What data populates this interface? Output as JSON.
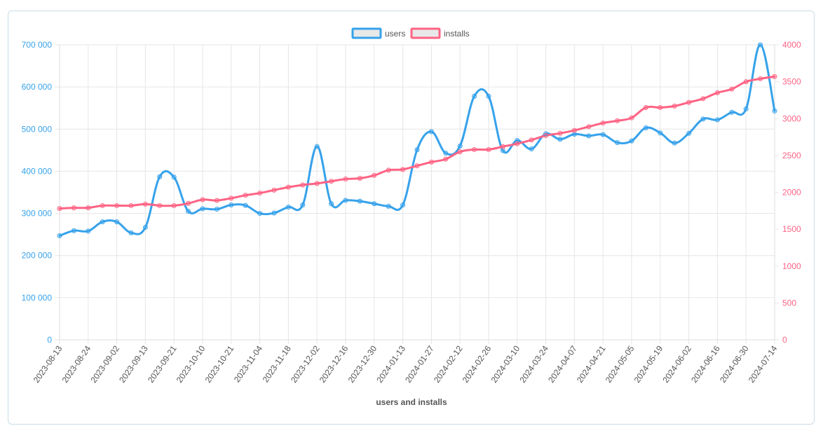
{
  "chart_data": {
    "type": "line",
    "title": "",
    "xlabel": "users and installs",
    "legend_position": "top",
    "grid": true,
    "x_tick_labels": [
      "2023-08-13",
      "2023-08-24",
      "2023-09-02",
      "2023-09-13",
      "2023-09-21",
      "2023-10-10",
      "2023-10-21",
      "2023-11-04",
      "2023-11-18",
      "2023-12-02",
      "2023-12-16",
      "2023-12-30",
      "2024-01-13",
      "2024-01-27",
      "2024-02-12",
      "2024-02-26",
      "2024-03-10",
      "2024-03-24",
      "2024-04-07",
      "2024-04-21",
      "2024-05-05",
      "2024-05-19",
      "2024-06-02",
      "2024-06-16",
      "2024-06-30",
      "2024-07-14"
    ],
    "y_left": {
      "ylim": [
        0,
        700000
      ],
      "ticks": [
        0,
        100000,
        200000,
        300000,
        400000,
        500000,
        600000,
        700000
      ],
      "tick_labels": [
        "0",
        "100 000",
        "200 000",
        "300 000",
        "400 000",
        "500 000",
        "600 000",
        "700 000"
      ],
      "color": "#36a2eb"
    },
    "y_right": {
      "ylim": [
        0,
        4000
      ],
      "ticks": [
        0,
        500,
        1000,
        1500,
        2000,
        2500,
        3000,
        3500,
        4000
      ],
      "tick_labels": [
        "0",
        "500",
        "1000",
        "1500",
        "2000",
        "2500",
        "3000",
        "3500",
        "4000"
      ],
      "color": "#ff6384"
    },
    "series": [
      {
        "name": "users",
        "axis": "left",
        "color": "#36a2eb",
        "values": [
          247000,
          259000,
          258000,
          280000,
          280000,
          254000,
          267000,
          387000,
          386000,
          305000,
          311000,
          310000,
          320000,
          319000,
          300000,
          301000,
          315000,
          320000,
          459000,
          323000,
          331000,
          329000,
          323000,
          317000,
          320000,
          451000,
          494000,
          443000,
          460000,
          578000,
          578000,
          449000,
          473000,
          453000,
          489000,
          476000,
          488000,
          484000,
          487000,
          468000,
          472000,
          503000,
          491000,
          467000,
          490000,
          524000,
          522000,
          540000,
          548000,
          700000,
          543000
        ]
      },
      {
        "name": "installs",
        "axis": "right",
        "color": "#ff6384",
        "values": [
          1780,
          1790,
          1790,
          1820,
          1820,
          1820,
          1840,
          1820,
          1820,
          1850,
          1900,
          1890,
          1920,
          1960,
          1990,
          2030,
          2070,
          2100,
          2120,
          2150,
          2180,
          2190,
          2230,
          2300,
          2310,
          2360,
          2410,
          2450,
          2550,
          2580,
          2580,
          2620,
          2660,
          2710,
          2770,
          2800,
          2840,
          2890,
          2940,
          2970,
          3010,
          3150,
          3150,
          3170,
          3220,
          3270,
          3350,
          3400,
          3500,
          3540,
          3570
        ]
      }
    ]
  }
}
